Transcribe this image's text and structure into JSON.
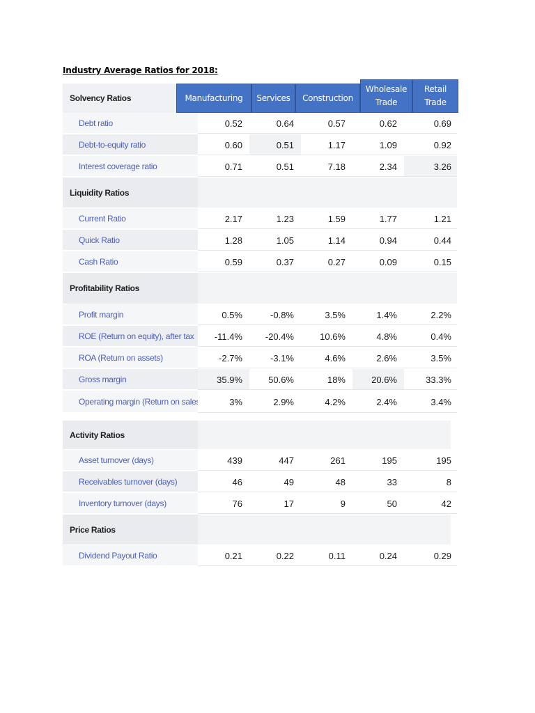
{
  "title": "Industry Average Ratios for 2018:",
  "columns": [
    "Manufacturing",
    "Services",
    "Construction",
    "Wholesale Trade",
    "Retail Trade"
  ],
  "header_label": "Solvency Ratios",
  "colors": {
    "header_bg": "#4472c4",
    "header_border": "#2f5597",
    "item_text": "#4a5ebd"
  },
  "sections": [
    {
      "name": "Solvency Ratios",
      "rows": [
        {
          "label": "Debt ratio",
          "values": [
            "0.52",
            "0.64",
            "0.57",
            "0.62",
            "0.69"
          ]
        },
        {
          "label": "Debt-to-equity ratio",
          "values": [
            "0.60",
            "0.51",
            "1.17",
            "1.09",
            "0.92"
          ]
        },
        {
          "label": "Interest coverage ratio",
          "values": [
            "0.71",
            "0.51",
            "7.18",
            "2.34",
            "3.26"
          ]
        }
      ]
    },
    {
      "name": "Liquidity Ratios",
      "rows": [
        {
          "label": "Current Ratio",
          "values": [
            "2.17",
            "1.23",
            "1.59",
            "1.77",
            "1.21"
          ]
        },
        {
          "label": "Quick Ratio",
          "values": [
            "1.28",
            "1.05",
            "1.14",
            "0.94",
            "0.44"
          ]
        },
        {
          "label": "Cash Ratio",
          "values": [
            "0.59",
            "0.37",
            "0.27",
            "0.09",
            "0.15"
          ]
        }
      ]
    },
    {
      "name": "Profitability Ratios",
      "rows": [
        {
          "label": "Profit margin",
          "values": [
            "0.5%",
            "-0.8%",
            "3.5%",
            "1.4%",
            "2.2%"
          ]
        },
        {
          "label": "ROE (Return on equity), after tax",
          "values": [
            "-11.4%",
            "-20.4%",
            "10.6%",
            "4.8%",
            "0.4%"
          ]
        },
        {
          "label": "ROA (Return on assets)",
          "values": [
            "-2.7%",
            "-3.1%",
            "4.6%",
            "2.6%",
            "3.5%"
          ]
        },
        {
          "label": "Gross margin",
          "values": [
            "35.9%",
            "50.6%",
            "18%",
            "20.6%",
            "33.3%"
          ]
        },
        {
          "label": "Operating margin (Return on sales)",
          "values": [
            "3%",
            "2.9%",
            "4.2%",
            "2.4%",
            "3.4%"
          ]
        }
      ]
    },
    {
      "name": "Activity Ratios",
      "rows": [
        {
          "label": "Asset turnover (days)",
          "values": [
            "439",
            "447",
            "261",
            "195",
            "195"
          ]
        },
        {
          "label": "Receivables turnover (days)",
          "values": [
            "46",
            "49",
            "48",
            "33",
            "8"
          ]
        },
        {
          "label": "Inventory turnover (days)",
          "values": [
            "76",
            "17",
            "9",
            "50",
            "42"
          ]
        }
      ]
    },
    {
      "name": "Price Ratios",
      "rows": [
        {
          "label": "Dividend Payout Ratio",
          "values": [
            "0.21",
            "0.22",
            "0.11",
            "0.24",
            "0.29"
          ]
        }
      ]
    }
  ]
}
